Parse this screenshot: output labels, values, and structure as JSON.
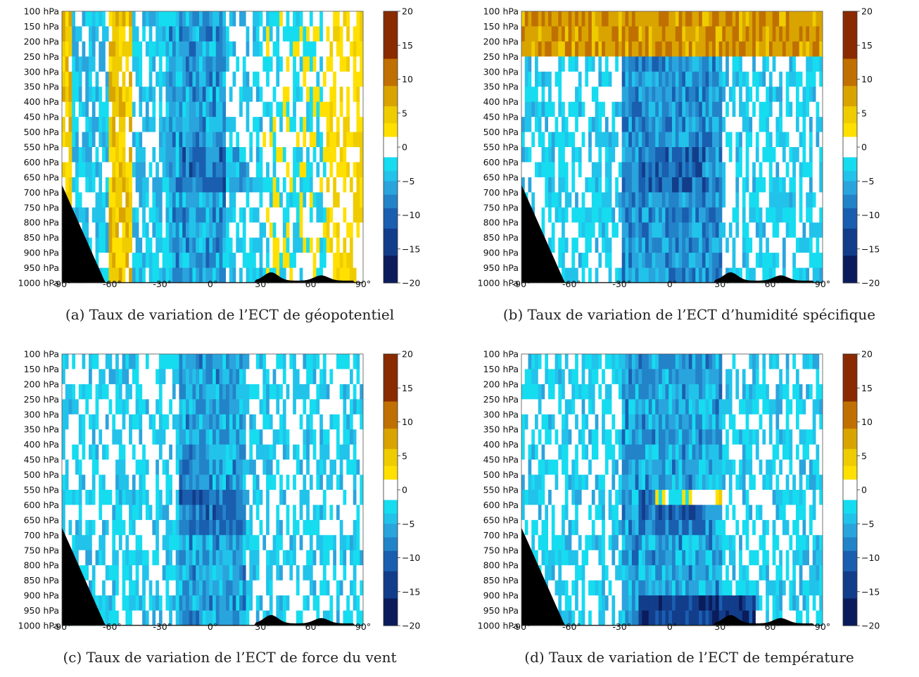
{
  "shared": {
    "y_ticks": [
      "100 hPa",
      "150 hPa",
      "200 hPa",
      "250 hPa",
      "300 hPa",
      "350 hPa",
      "400 hPa",
      "450 hPa",
      "500 hPa",
      "550 hPa",
      "600 hPa",
      "650 hPa",
      "700 hPa",
      "750 hPa",
      "800 hPa",
      "850 hPa",
      "900 hPa",
      "950 hPa",
      "1000 hPa"
    ],
    "x_ticks": [
      "-90°",
      "-60°",
      "-30°",
      "0°",
      "30°",
      "60°",
      "90°"
    ],
    "colorbar_ticks": [
      "20",
      "15",
      "10",
      "5",
      "0",
      "−5",
      "−10",
      "−15",
      "−20"
    ]
  },
  "chart_data": [
    {
      "type": "heatmap",
      "caption": "(a) Taux de variation de l’ECT de géopotentiel",
      "x_range": [
        -90,
        90
      ],
      "y_levels_hpa": [
        100,
        150,
        200,
        250,
        300,
        350,
        400,
        450,
        500,
        550,
        600,
        650,
        700,
        750,
        800,
        850,
        900,
        950,
        1000
      ],
      "colorbar_range": [
        -20,
        20
      ],
      "colormap": [
        "#0a1560",
        "#1f5fb0",
        "#2fa0e0",
        "#16dcf0",
        "#ffffff",
        "#ffe000",
        "#e0b000",
        "#b86000",
        "#5a0000"
      ],
      "bands": [
        {
          "lat": [
            -90,
            -84
          ],
          "value": 4
        },
        {
          "lat": [
            -84,
            -62
          ],
          "value": -3
        },
        {
          "lat": [
            -62,
            -47
          ],
          "value": 4
        },
        {
          "lat": [
            -47,
            -25
          ],
          "value": -3
        },
        {
          "lat": [
            -25,
            8
          ],
          "value": -6
        },
        {
          "lat": [
            8,
            30
          ],
          "value": -2
        },
        {
          "lat": [
            30,
            68
          ],
          "value": -1
        },
        {
          "lat": [
            68,
            90
          ],
          "value": 2
        }
      ],
      "topography": "black"
    },
    {
      "type": "heatmap",
      "caption": "(b) Taux de variation de l’ECT d’humidité spécifique",
      "x_range": [
        -90,
        90
      ],
      "y_levels_hpa": [
        100,
        150,
        200,
        250,
        300,
        350,
        400,
        450,
        500,
        550,
        600,
        650,
        700,
        750,
        800,
        850,
        900,
        950,
        1000
      ],
      "colorbar_range": [
        -20,
        20
      ],
      "bands": [
        {
          "lat": [
            -90,
            -30
          ],
          "value": -2
        },
        {
          "lat": [
            -30,
            30
          ],
          "value": -7
        },
        {
          "lat": [
            30,
            90
          ],
          "value": -2
        }
      ],
      "upper_levels_value": 8,
      "topography": "black"
    },
    {
      "type": "heatmap",
      "caption": "(c) Taux de variation de l’ECT de force du vent",
      "x_range": [
        -90,
        90
      ],
      "y_levels_hpa": [
        100,
        150,
        200,
        250,
        300,
        350,
        400,
        450,
        500,
        550,
        600,
        650,
        700,
        750,
        800,
        850,
        900,
        950,
        1000
      ],
      "colorbar_range": [
        -20,
        20
      ],
      "bands": [
        {
          "lat": [
            -90,
            -20
          ],
          "value": -2
        },
        {
          "lat": [
            -20,
            20
          ],
          "value": -6
        },
        {
          "lat": [
            20,
            90
          ],
          "value": -2
        }
      ],
      "topography": "black"
    },
    {
      "type": "heatmap",
      "caption": "(d) Taux de variation de l’ECT de température",
      "x_range": [
        -90,
        90
      ],
      "y_levels_hpa": [
        100,
        150,
        200,
        250,
        300,
        350,
        400,
        450,
        500,
        550,
        600,
        650,
        700,
        750,
        800,
        850,
        900,
        950,
        1000
      ],
      "colorbar_range": [
        -20,
        20
      ],
      "bands": [
        {
          "lat": [
            -90,
            -30
          ],
          "value": -2
        },
        {
          "lat": [
            -30,
            30
          ],
          "value": -6
        },
        {
          "lat": [
            30,
            90
          ],
          "value": -2
        }
      ],
      "feature_550_600hPa_value": 3,
      "near_surface_value": -14,
      "topography": "black"
    }
  ]
}
